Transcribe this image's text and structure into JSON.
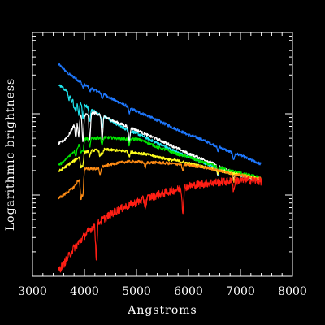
{
  "chart_data": {
    "type": "line",
    "title": "",
    "xlabel": "Angstroms",
    "ylabel": "Logarithmic brightness",
    "xlim": [
      3000,
      8000
    ],
    "ylim": [
      0,
      3
    ],
    "y_scale": "log",
    "x_ticks": [
      3000,
      4000,
      5000,
      6000,
      7000,
      8000
    ],
    "x_tick_labels": [
      "3000",
      "4000",
      "5000",
      "6000",
      "7000",
      "8000"
    ],
    "y_major_ticks": [
      1,
      2
    ],
    "grid": false,
    "legend": "none",
    "background": "#000000",
    "axis_color": "#ffffff",
    "series": [
      {
        "color": "#1e78ff",
        "x": [
          3500,
          3600,
          3700,
          3800,
          3900,
          4000,
          4200,
          4400,
          4600,
          4800,
          5000,
          5200,
          5400,
          5600,
          5800,
          6000,
          6200,
          6400,
          6600,
          6800,
          7000,
          7200,
          7400
        ],
        "y": [
          2.61,
          2.55,
          2.49,
          2.45,
          2.4,
          2.36,
          2.29,
          2.23,
          2.16,
          2.1,
          2.03,
          1.98,
          1.92,
          1.86,
          1.8,
          1.74,
          1.7,
          1.64,
          1.59,
          1.53,
          1.49,
          1.43,
          1.38
        ],
        "dips": [
          [
            3970,
            0.05
          ],
          [
            4101,
            0.05
          ],
          [
            4340,
            0.06
          ],
          [
            4861,
            0.08
          ],
          [
            6563,
            0.06
          ],
          [
            6870,
            0.08
          ]
        ]
      },
      {
        "color": "#1ee6f0",
        "x": [
          3500,
          3600,
          3700,
          3800,
          3900,
          4000,
          4200,
          4400,
          4600,
          4800,
          5000,
          5200,
          5400,
          5600,
          5800,
          6000,
          6200,
          6400,
          6600,
          6800,
          7000,
          7200,
          7400
        ],
        "y": [
          2.36,
          2.31,
          2.26,
          2.2,
          2.15,
          2.11,
          2.03,
          1.96,
          1.88,
          1.81,
          1.76,
          1.7,
          1.64,
          1.58,
          1.52,
          1.47,
          1.42,
          1.37,
          1.32,
          1.28,
          1.24,
          1.2,
          1.18
        ],
        "dips": [
          [
            3700,
            0.08
          ],
          [
            3750,
            0.1
          ],
          [
            3800,
            0.12
          ],
          [
            3835,
            0.14
          ],
          [
            3889,
            0.16
          ],
          [
            3970,
            0.18
          ],
          [
            4101,
            0.16
          ],
          [
            4340,
            0.15
          ],
          [
            4861,
            0.12
          ],
          [
            6563,
            0.08
          ]
        ]
      },
      {
        "color": "#ffffff",
        "x": [
          3500,
          3600,
          3700,
          3800,
          3900,
          4000,
          4200,
          4400,
          4600,
          4800,
          5000,
          5200,
          5400,
          5600,
          5800,
          6000,
          6200,
          6400,
          6600,
          6800,
          7000,
          7200,
          7400
        ],
        "y": [
          1.63,
          1.67,
          1.74,
          1.86,
          1.99,
          1.99,
          2.01,
          1.96,
          1.9,
          1.85,
          1.8,
          1.74,
          1.69,
          1.63,
          1.57,
          1.51,
          1.46,
          1.41,
          1.35,
          1.29,
          1.25,
          1.21,
          1.19
        ],
        "dips": [
          [
            3835,
            0.2
          ],
          [
            3889,
            0.26
          ],
          [
            3970,
            0.35
          ],
          [
            4101,
            0.33
          ],
          [
            4340,
            0.3
          ],
          [
            4861,
            0.2
          ],
          [
            6563,
            0.12
          ],
          [
            6870,
            0.08
          ]
        ]
      },
      {
        "color": "#00e600",
        "x": [
          3500,
          3600,
          3700,
          3800,
          3900,
          4000,
          4200,
          4400,
          4600,
          4800,
          5000,
          5200,
          5400,
          5600,
          5800,
          6000,
          6200,
          6400,
          6600,
          6800,
          7000,
          7200,
          7400
        ],
        "y": [
          1.37,
          1.41,
          1.48,
          1.54,
          1.62,
          1.69,
          1.7,
          1.71,
          1.7,
          1.69,
          1.69,
          1.65,
          1.59,
          1.55,
          1.5,
          1.47,
          1.42,
          1.38,
          1.34,
          1.3,
          1.27,
          1.24,
          1.21
        ],
        "dips": [
          [
            3835,
            0.08
          ],
          [
            3933,
            0.12
          ],
          [
            3970,
            0.14
          ],
          [
            4101,
            0.1
          ],
          [
            4340,
            0.1
          ],
          [
            4861,
            0.08
          ],
          [
            6563,
            0.06
          ]
        ]
      },
      {
        "color": "#ffff1e",
        "x": [
          3500,
          3600,
          3700,
          3800,
          3900,
          4000,
          4200,
          4400,
          4600,
          4800,
          5000,
          5200,
          5400,
          5600,
          5800,
          6000,
          6200,
          6400,
          6600,
          6800,
          7000,
          7200,
          7400
        ],
        "y": [
          1.29,
          1.33,
          1.38,
          1.42,
          1.47,
          1.53,
          1.55,
          1.56,
          1.55,
          1.54,
          1.52,
          1.5,
          1.47,
          1.44,
          1.42,
          1.39,
          1.36,
          1.33,
          1.3,
          1.27,
          1.25,
          1.22,
          1.2
        ],
        "dips": [
          [
            3933,
            0.15
          ],
          [
            3968,
            0.15
          ],
          [
            4101,
            0.06
          ],
          [
            4300,
            0.08
          ],
          [
            4340,
            0.06
          ],
          [
            4861,
            0.05
          ],
          [
            6563,
            0.04
          ]
        ]
      },
      {
        "color": "#ff8c14",
        "x": [
          3500,
          3600,
          3700,
          3800,
          3900,
          4000,
          4200,
          4400,
          4600,
          4800,
          5000,
          5200,
          5400,
          5600,
          5800,
          6000,
          6200,
          6400,
          6600,
          6800,
          7000,
          7200,
          7400
        ],
        "y": [
          0.96,
          1.0,
          1.05,
          1.1,
          1.2,
          1.33,
          1.32,
          1.36,
          1.39,
          1.41,
          1.41,
          1.4,
          1.4,
          1.39,
          1.38,
          1.37,
          1.35,
          1.33,
          1.3,
          1.27,
          1.25,
          1.22,
          1.18
        ],
        "dips": [
          [
            3933,
            0.3
          ],
          [
            3968,
            0.3
          ],
          [
            4300,
            0.1
          ],
          [
            5170,
            0.06
          ],
          [
            5890,
            0.08
          ],
          [
            6870,
            0.1
          ]
        ]
      },
      {
        "color": "#ff1e14",
        "x": [
          3500,
          3600,
          3700,
          3800,
          3900,
          4000,
          4100,
          4200,
          4400,
          4600,
          4800,
          5000,
          5200,
          5400,
          5600,
          5800,
          6000,
          6200,
          6400,
          6600,
          6800,
          7000,
          7200,
          7400
        ],
        "y": [
          0.07,
          0.15,
          0.25,
          0.35,
          0.42,
          0.5,
          0.57,
          0.63,
          0.72,
          0.8,
          0.86,
          0.91,
          0.96,
          1.0,
          1.04,
          1.07,
          1.11,
          1.13,
          1.15,
          1.16,
          1.17,
          1.18,
          1.18,
          1.17
        ],
        "dips": [
          [
            4227,
            0.4
          ],
          [
            5170,
            0.1
          ],
          [
            5890,
            0.28
          ],
          [
            6870,
            0.12
          ]
        ]
      }
    ]
  }
}
